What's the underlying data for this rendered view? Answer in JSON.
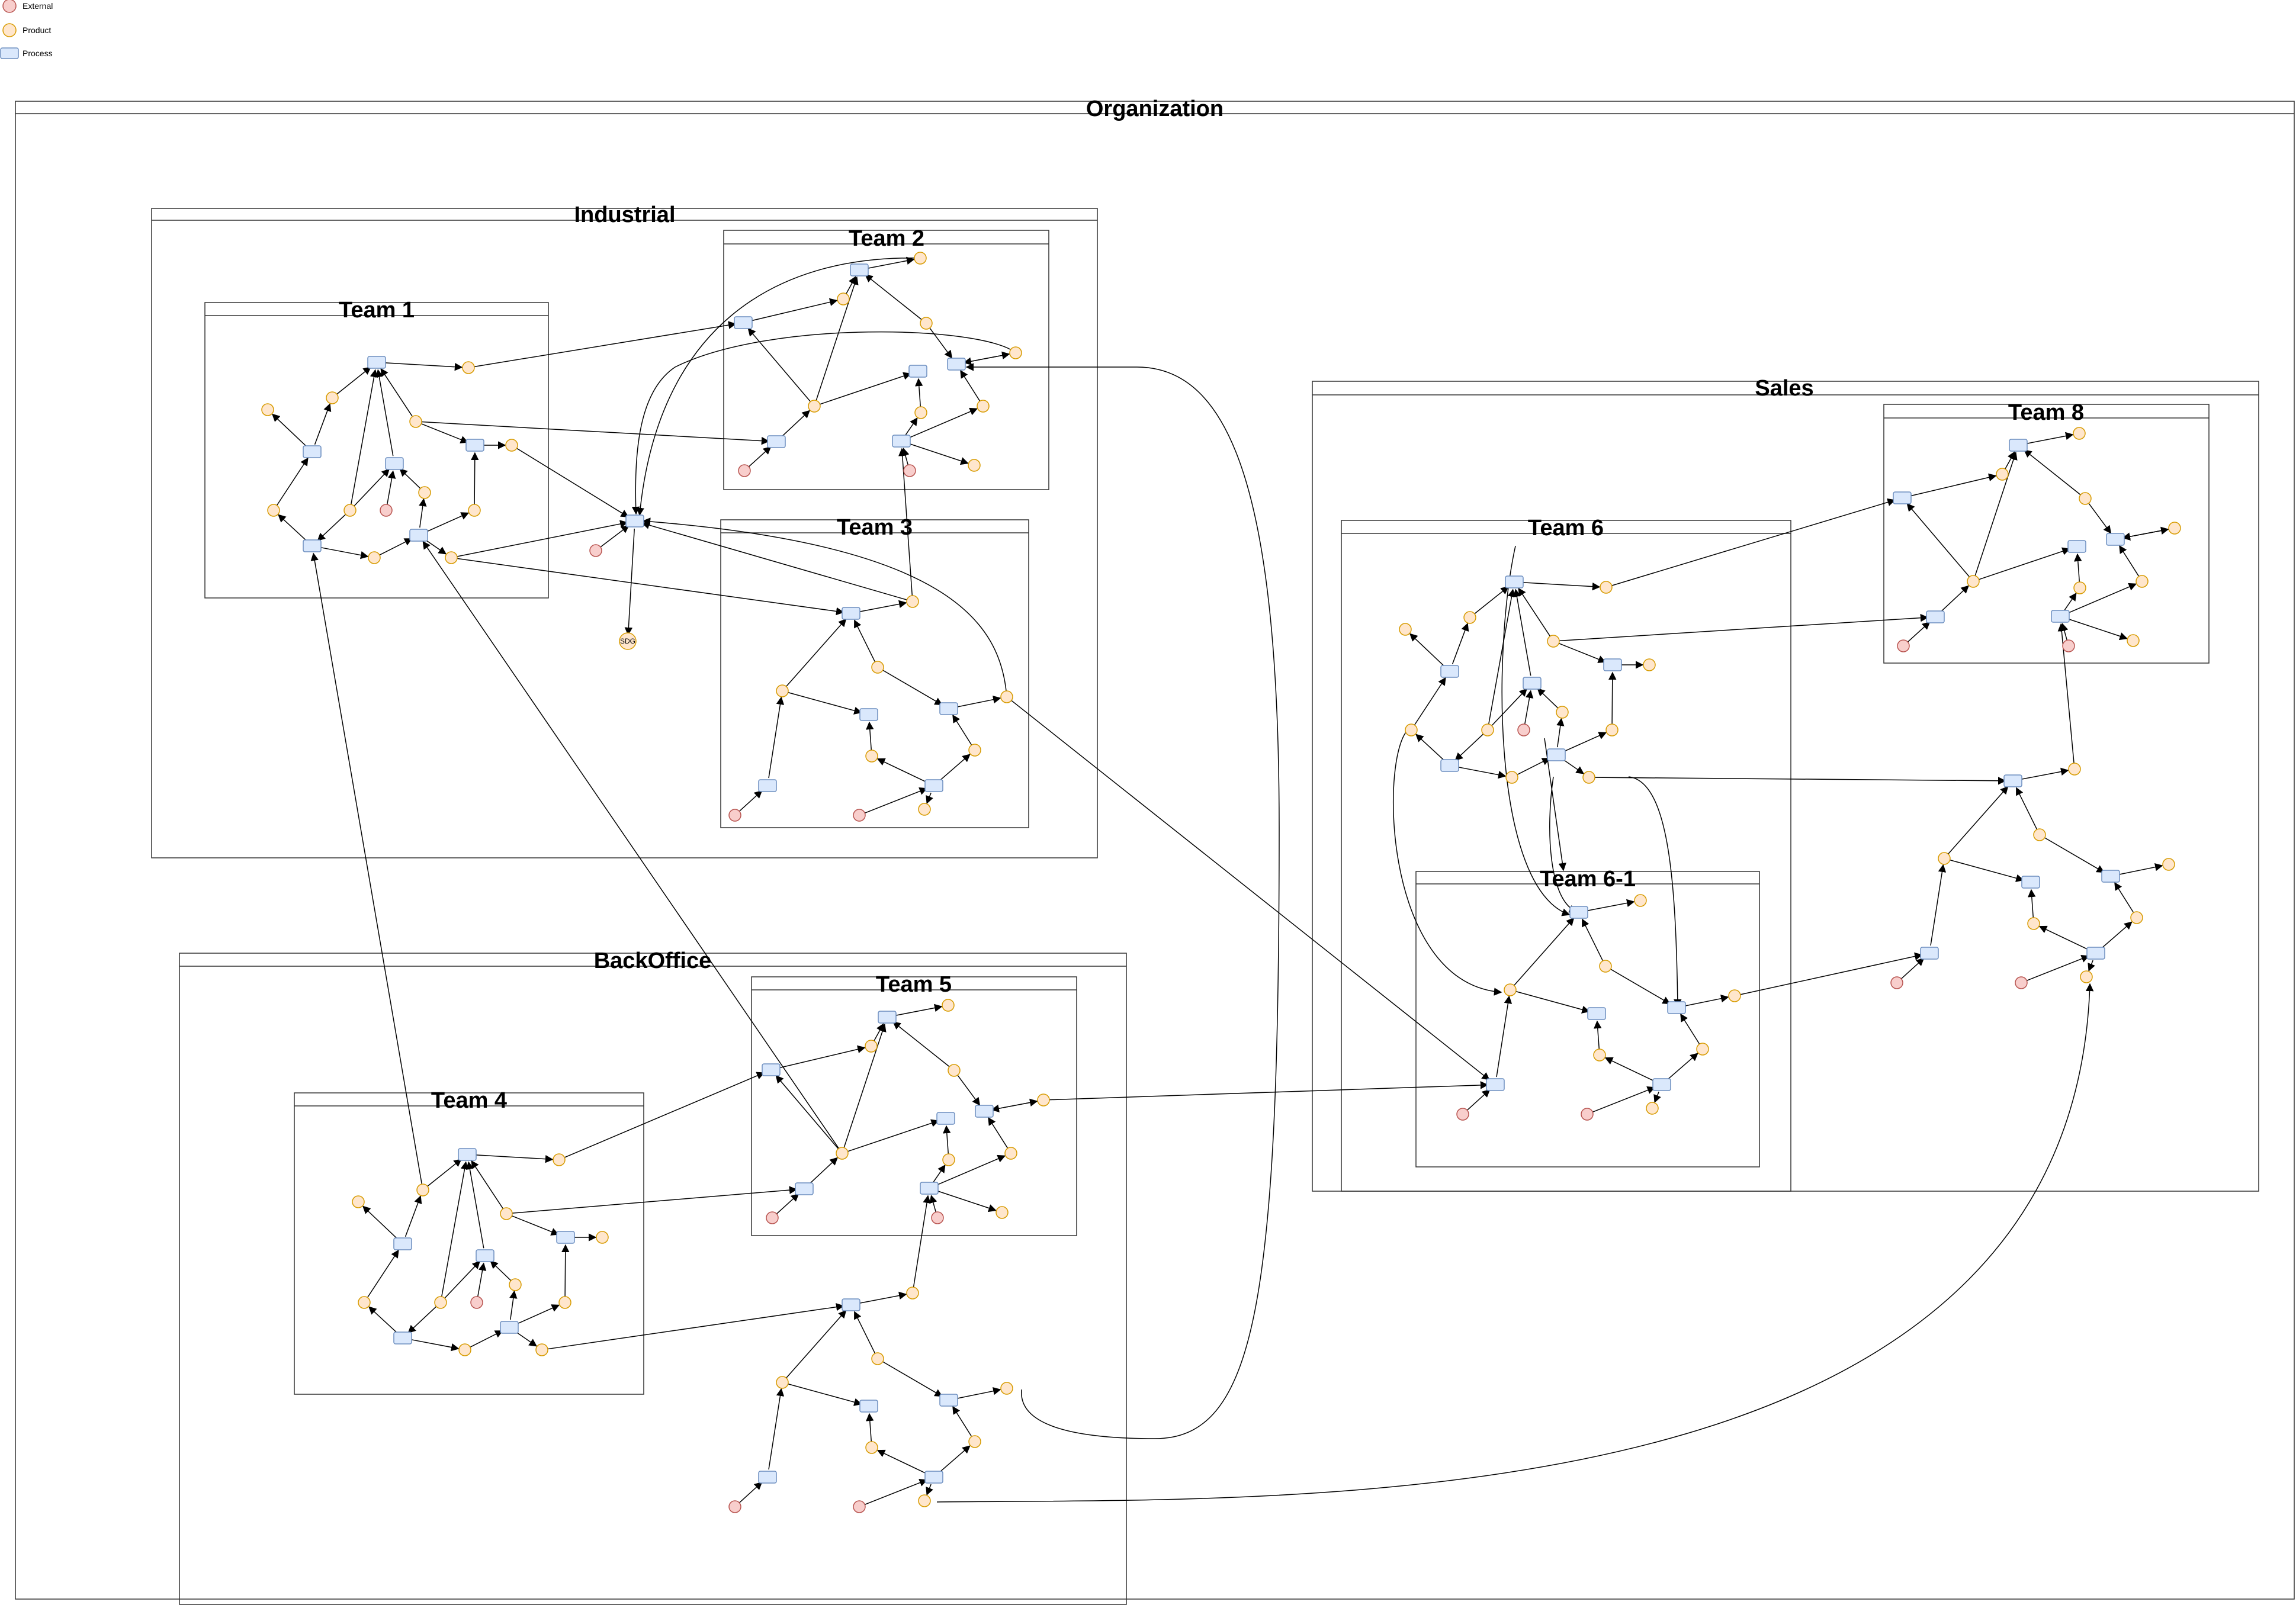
{
  "legend": [
    {
      "label": "External",
      "shape": "circle",
      "fill": "#F8CECC",
      "stroke": "#B85450"
    },
    {
      "label": "Product",
      "shape": "circle",
      "fill": "#FFE6CC",
      "stroke": "#D79B00"
    },
    {
      "label": "Process",
      "shape": "rect",
      "fill": "#DAE8FC",
      "stroke": "#6C8EBF"
    }
  ],
  "colors": {
    "external_fill": "#F8CECC",
    "external_stroke": "#B85450",
    "product_fill": "#FFE6CC",
    "product_stroke": "#D79B00",
    "process_fill": "#DAE8FC",
    "process_stroke": "#6C8EBF",
    "edge": "#000000",
    "container_stroke": "#000000"
  },
  "containers": {
    "organization": "Organization",
    "industrial": "Industrial",
    "backoffice": "BackOffice",
    "sales": "Sales",
    "team1": "Team 1",
    "team2": "Team 2",
    "team3": "Team 3",
    "team4": "Team 4",
    "team5": "Team 5",
    "team6": "Team 6",
    "team6_1": "Team 6-1",
    "team8": "Team 8"
  },
  "special_node_label": "SDG"
}
